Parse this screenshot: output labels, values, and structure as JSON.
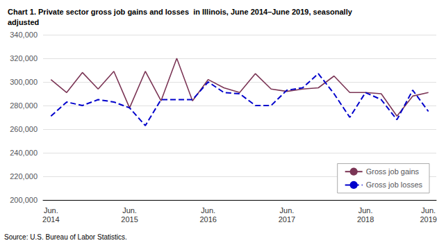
{
  "chart_data": {
    "type": "line",
    "title": "Chart 1. Private sector gross job gains and losses  in Illinois, June 2014–June 2019, seasonally\nadjusted",
    "annotations": [
      "Source: U.S. Bureau of Labor Statistics."
    ],
    "categories": [
      "Jun.\n2014",
      null,
      null,
      null,
      null,
      "Jun.\n2015",
      null,
      null,
      null,
      null,
      "Jun.\n2016",
      null,
      null,
      null,
      null,
      "Jun.\n2017",
      null,
      null,
      null,
      null,
      "Jun.\n2018",
      null,
      null,
      null,
      "Jun.\n2019"
    ],
    "series": [
      {
        "name": "Gross job gains",
        "color": "#7B3555",
        "line_style": "solid",
        "marker": "none",
        "values": [
          302000,
          291000,
          308000,
          294000,
          309000,
          278000,
          309000,
          284000,
          320000,
          284000,
          302000,
          295000,
          291000,
          307000,
          294000,
          292000,
          294000,
          295000,
          305000,
          291000,
          291000,
          290000,
          271000,
          288000,
          291000
        ]
      },
      {
        "name": "Gross job losses",
        "color": "#0000CC",
        "line_style": "dashed",
        "marker": "none",
        "values": [
          271000,
          283000,
          280000,
          285000,
          283000,
          278000,
          263000,
          285000,
          285000,
          285000,
          300000,
          291000,
          290000,
          280000,
          280000,
          293000,
          295000,
          307000,
          290000,
          270000,
          291000,
          285000,
          268000,
          293000,
          275000
        ]
      }
    ],
    "ylim": [
      200000,
      340000
    ],
    "yticks": [
      {
        "value": 200000,
        "label": "200,000"
      },
      {
        "value": 220000,
        "label": "220,000"
      },
      {
        "value": 240000,
        "label": "240,000"
      },
      {
        "value": 260000,
        "label": "260,000"
      },
      {
        "value": 280000,
        "label": "280,000"
      },
      {
        "value": 300000,
        "label": "300,000"
      },
      {
        "value": 320000,
        "label": "320,000"
      },
      {
        "value": 340000,
        "label": "340,000"
      }
    ],
    "grid": true,
    "legend": "lower right"
  }
}
